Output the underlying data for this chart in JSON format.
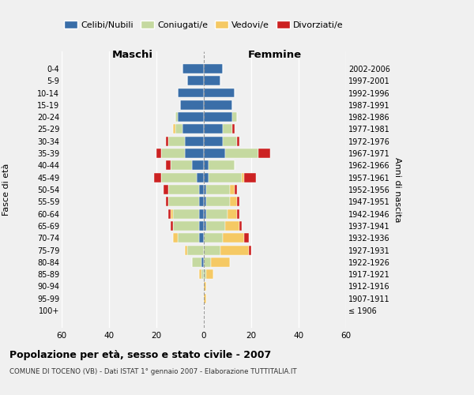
{
  "age_groups": [
    "100+",
    "95-99",
    "90-94",
    "85-89",
    "80-84",
    "75-79",
    "70-74",
    "65-69",
    "60-64",
    "55-59",
    "50-54",
    "45-49",
    "40-44",
    "35-39",
    "30-34",
    "25-29",
    "20-24",
    "15-19",
    "10-14",
    "5-9",
    "0-4"
  ],
  "birth_years": [
    "≤ 1906",
    "1907-1911",
    "1912-1916",
    "1917-1921",
    "1922-1926",
    "1927-1931",
    "1932-1936",
    "1937-1941",
    "1942-1946",
    "1947-1951",
    "1952-1956",
    "1957-1961",
    "1962-1966",
    "1967-1971",
    "1972-1976",
    "1977-1981",
    "1982-1986",
    "1987-1991",
    "1992-1996",
    "1997-2001",
    "2002-2006"
  ],
  "maschi": {
    "celibi": [
      0,
      0,
      0,
      0,
      1,
      0,
      2,
      2,
      2,
      2,
      2,
      3,
      5,
      8,
      8,
      9,
      11,
      10,
      11,
      7,
      9
    ],
    "coniugati": [
      0,
      0,
      0,
      1,
      4,
      7,
      9,
      11,
      11,
      13,
      13,
      15,
      9,
      10,
      7,
      3,
      1,
      0,
      0,
      0,
      0
    ],
    "vedovi": [
      0,
      0,
      0,
      1,
      0,
      1,
      2,
      0,
      1,
      0,
      0,
      0,
      0,
      0,
      0,
      1,
      0,
      0,
      0,
      0,
      0
    ],
    "divorziati": [
      0,
      0,
      0,
      0,
      0,
      0,
      0,
      1,
      1,
      1,
      2,
      3,
      2,
      2,
      1,
      0,
      0,
      0,
      0,
      0,
      0
    ]
  },
  "femmine": {
    "nubili": [
      0,
      0,
      0,
      0,
      0,
      0,
      0,
      1,
      1,
      1,
      1,
      2,
      2,
      9,
      8,
      8,
      12,
      12,
      13,
      7,
      8
    ],
    "coniugate": [
      0,
      0,
      0,
      1,
      3,
      7,
      8,
      8,
      9,
      10,
      10,
      14,
      11,
      14,
      6,
      4,
      2,
      0,
      0,
      0,
      0
    ],
    "vedove": [
      0,
      1,
      1,
      3,
      8,
      12,
      9,
      6,
      4,
      3,
      2,
      1,
      0,
      0,
      0,
      0,
      0,
      0,
      0,
      0,
      0
    ],
    "divorziate": [
      0,
      0,
      0,
      0,
      0,
      1,
      2,
      1,
      1,
      1,
      1,
      5,
      0,
      5,
      1,
      1,
      0,
      0,
      0,
      0,
      0
    ]
  },
  "colors": {
    "celibi": "#3a6ea8",
    "coniugati": "#c5d9a0",
    "vedovi": "#f5c964",
    "divorziati": "#cc2222"
  },
  "title": "Popolazione per età, sesso e stato civile - 2007",
  "subtitle": "COMUNE DI TOCENO (VB) - Dati ISTAT 1° gennaio 2007 - Elaborazione TUTTITALIA.IT",
  "xlabel_left": "Maschi",
  "xlabel_right": "Femmine",
  "ylabel_left": "Fasce di età",
  "ylabel_right": "Anni di nascita",
  "xlim": 60,
  "background_color": "#f0f0f0",
  "grid_color": "#ffffff"
}
